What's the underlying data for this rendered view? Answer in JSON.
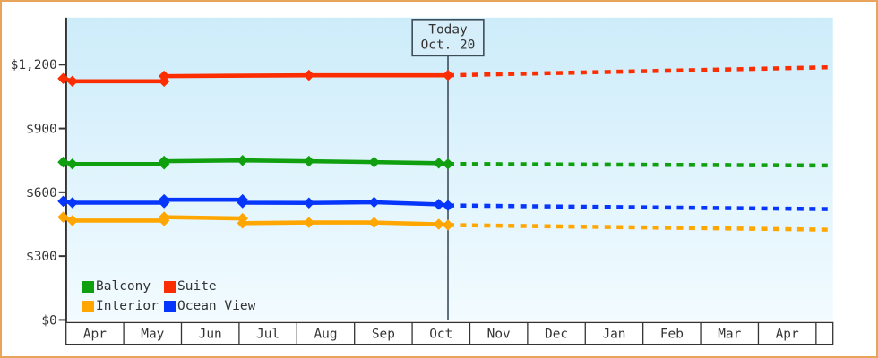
{
  "chart_data": {
    "type": "line",
    "y_axis": {
      "tick_labels": [
        "$0",
        "$300",
        "$600",
        "$900",
        "$1,200"
      ],
      "tick_values": [
        0,
        300,
        600,
        900,
        1200
      ],
      "range": [
        0,
        1425
      ],
      "grid": "off"
    },
    "x_axis": {
      "unit": "month",
      "month_labels": [
        "Apr",
        "May",
        "Jun",
        "Jul",
        "Aug",
        "Sep",
        "Oct",
        "Nov",
        "Dec",
        "Jan",
        "Feb",
        "Mar",
        "Apr"
      ]
    },
    "today": {
      "line1": "Today",
      "line2": "Oct. 20",
      "month_position": 6.62
    },
    "series": [
      {
        "name": "Balcony",
        "color": "#0f9f0f",
        "history": [
          [
            -0.05,
            742
          ],
          [
            0.11,
            733
          ],
          [
            1.7,
            733
          ],
          [
            1.7,
            746
          ],
          [
            3.06,
            750
          ],
          [
            4.21,
            746
          ],
          [
            5.34,
            742
          ],
          [
            6.46,
            737
          ],
          [
            6.62,
            733
          ]
        ],
        "forecast": [
          [
            6.62,
            733
          ],
          [
            13.28,
            726
          ]
        ]
      },
      {
        "name": "Suite",
        "color": "#fc2d01",
        "history": [
          [
            -0.05,
            1135
          ],
          [
            0.11,
            1122
          ],
          [
            1.7,
            1122
          ],
          [
            1.7,
            1146
          ],
          [
            4.21,
            1150
          ],
          [
            6.62,
            1150
          ]
        ],
        "forecast": [
          [
            6.62,
            1150
          ],
          [
            13.28,
            1188
          ]
        ]
      },
      {
        "name": "Interior",
        "color": "#ffa600",
        "history": [
          [
            -0.05,
            483
          ],
          [
            0.11,
            467
          ],
          [
            1.7,
            467
          ],
          [
            1.7,
            483
          ],
          [
            3.06,
            477
          ],
          [
            3.06,
            455
          ],
          [
            4.21,
            458
          ],
          [
            5.34,
            458
          ],
          [
            6.46,
            450
          ],
          [
            6.62,
            446
          ]
        ],
        "forecast": [
          [
            6.62,
            446
          ],
          [
            13.28,
            424
          ]
        ]
      },
      {
        "name": "Ocean View",
        "color": "#0636fb",
        "history": [
          [
            -0.05,
            558
          ],
          [
            0.11,
            551
          ],
          [
            1.7,
            551
          ],
          [
            1.7,
            565
          ],
          [
            3.06,
            565
          ],
          [
            3.06,
            551
          ],
          [
            4.21,
            550
          ],
          [
            5.34,
            553
          ],
          [
            6.46,
            543
          ],
          [
            6.62,
            538
          ]
        ],
        "forecast": [
          [
            6.62,
            538
          ],
          [
            13.28,
            521
          ]
        ]
      }
    ],
    "legend_position": "bottom-left-inside",
    "colors": {
      "plot_bg_top": "#cdecfa",
      "plot_bg_bottom": "#f2fbff",
      "axis": "#333333",
      "text": "#333333",
      "month_row_bg": "#ffffff",
      "today_box_bg": "#d6eefa",
      "today_line": "#3d4d57",
      "frame_border": "#e9a45b"
    }
  }
}
